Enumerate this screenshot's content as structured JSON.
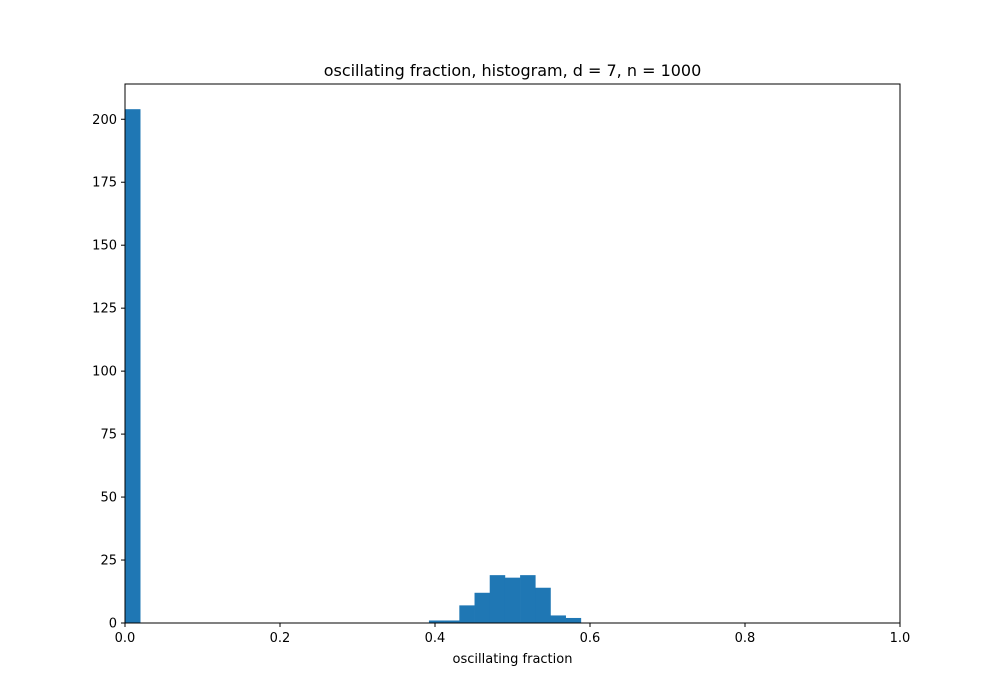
{
  "chart_data": {
    "type": "bar",
    "title": "oscillating fraction, histogram, d = 7, n = 1000",
    "xlabel": "oscillating fraction",
    "ylabel": "",
    "xlim": [
      0.0,
      1.0
    ],
    "ylim": [
      0,
      214
    ],
    "xticks": [
      0.0,
      0.2,
      0.4,
      0.6,
      0.8,
      1.0
    ],
    "xtick_labels": [
      "0.0",
      "0.2",
      "0.4",
      "0.6",
      "0.8",
      "1.0"
    ],
    "yticks": [
      0,
      25,
      50,
      75,
      100,
      125,
      150,
      175,
      200
    ],
    "ytick_labels": [
      "0",
      "25",
      "50",
      "75",
      "100",
      "125",
      "150",
      "175",
      "200"
    ],
    "grid": false,
    "bar_color": "#1f77b4",
    "bins": [
      {
        "x0": 0.0,
        "x1": 0.0196,
        "count": 204
      },
      {
        "x0": 0.3922,
        "x1": 0.4118,
        "count": 1
      },
      {
        "x0": 0.4118,
        "x1": 0.4314,
        "count": 1
      },
      {
        "x0": 0.4314,
        "x1": 0.451,
        "count": 7
      },
      {
        "x0": 0.451,
        "x1": 0.4706,
        "count": 12
      },
      {
        "x0": 0.4706,
        "x1": 0.4902,
        "count": 19
      },
      {
        "x0": 0.4902,
        "x1": 0.5098,
        "count": 18
      },
      {
        "x0": 0.5098,
        "x1": 0.5294,
        "count": 19
      },
      {
        "x0": 0.5294,
        "x1": 0.549,
        "count": 14
      },
      {
        "x0": 0.549,
        "x1": 0.5686,
        "count": 3
      },
      {
        "x0": 0.5686,
        "x1": 0.5882,
        "count": 2
      }
    ]
  }
}
